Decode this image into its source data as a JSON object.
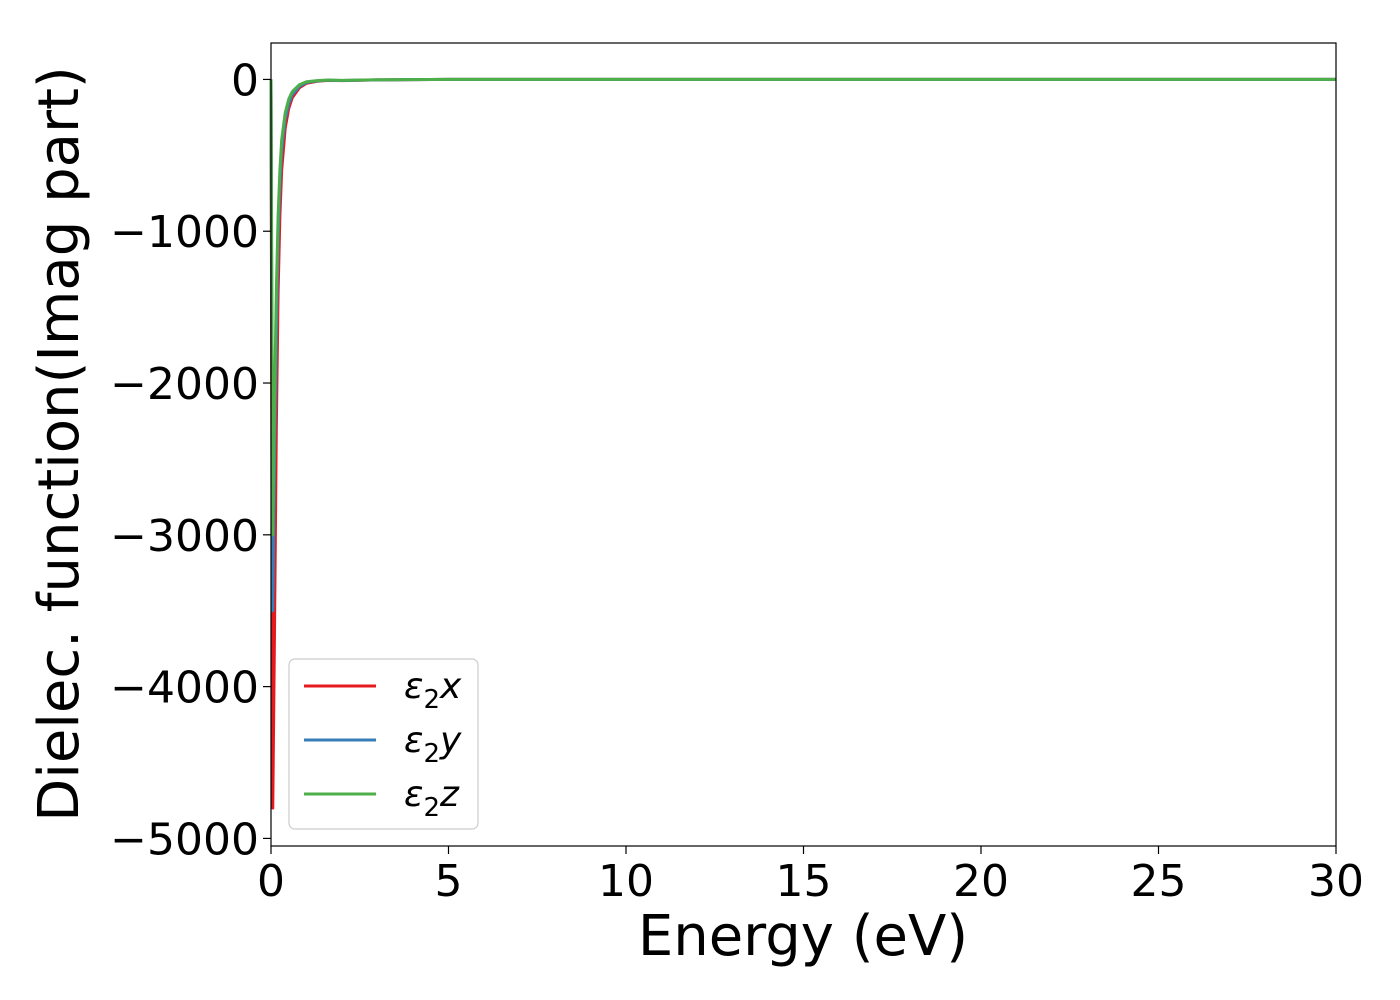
{
  "chart_data": {
    "type": "line",
    "title": "",
    "xlabel": "Energy (eV)",
    "ylabel": "Dielec. function(Imag part)",
    "xlim": [
      0,
      30
    ],
    "ylim": [
      -5050,
      240
    ],
    "xticks": [
      0,
      5,
      10,
      15,
      20,
      25,
      30
    ],
    "xtick_labels": [
      "0",
      "5",
      "10",
      "15",
      "20",
      "25",
      "30"
    ],
    "yticks": [
      0,
      -1000,
      -2000,
      -3000,
      -4000,
      -5000
    ],
    "ytick_labels": [
      "0",
      "−1000",
      "−2000",
      "−3000",
      "−4000",
      "−5000"
    ],
    "grid": false,
    "legend_position": "lower-left",
    "series": [
      {
        "name": "x",
        "label_base": "ε",
        "label_sub": "2",
        "label_suffix": "x",
        "color": "#e41a1c",
        "x": [
          0.0,
          0.05,
          0.1,
          0.15,
          0.2,
          0.25,
          0.3,
          0.4,
          0.5,
          0.6,
          0.8,
          1.0,
          1.3,
          1.6,
          2.0,
          3.0,
          5.0,
          10.0,
          15.0,
          20.0,
          25.0,
          30.0
        ],
        "y": [
          0,
          -4800,
          -3600,
          -2300,
          -1400,
          -900,
          -600,
          -320,
          -190,
          -120,
          -55,
          -25,
          -12,
          -6,
          -8,
          -3,
          0,
          0,
          0,
          0,
          0,
          0
        ]
      },
      {
        "name": "y",
        "label_base": "ε",
        "label_sub": "2",
        "label_suffix": "y",
        "color": "#377eb8",
        "x": [
          0.0,
          0.05,
          0.1,
          0.15,
          0.2,
          0.25,
          0.3,
          0.4,
          0.5,
          0.6,
          0.8,
          1.0,
          1.3,
          1.6,
          2.0,
          3.0,
          5.0,
          10.0,
          15.0,
          20.0,
          25.0,
          30.0
        ],
        "y": [
          0,
          -3500,
          -2500,
          -1700,
          -1050,
          -700,
          -470,
          -260,
          -160,
          -100,
          -45,
          -20,
          -10,
          -5,
          -7,
          -3,
          0,
          0,
          0,
          0,
          0,
          0
        ]
      },
      {
        "name": "z",
        "label_base": "ε",
        "label_sub": "2",
        "label_suffix": "z",
        "color": "#4daf4a",
        "x": [
          0.0,
          0.05,
          0.1,
          0.15,
          0.2,
          0.25,
          0.3,
          0.4,
          0.5,
          0.6,
          0.8,
          1.0,
          1.3,
          1.6,
          2.0,
          3.0,
          5.0,
          10.0,
          15.0,
          20.0,
          25.0,
          30.0
        ],
        "y": [
          0,
          -3000,
          -2100,
          -1400,
          -900,
          -600,
          -400,
          -220,
          -130,
          -80,
          -35,
          -15,
          -8,
          -4,
          -6,
          -2,
          0,
          0,
          0,
          0,
          0,
          0
        ]
      }
    ]
  }
}
